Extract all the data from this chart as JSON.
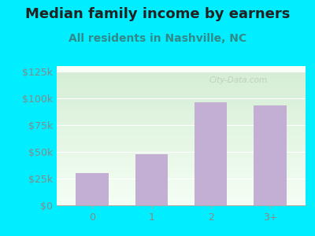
{
  "title": "Median family income by earners",
  "subtitle": "All residents in Nashville, NC",
  "categories": [
    "0",
    "1",
    "2",
    "3+"
  ],
  "values": [
    30000,
    48000,
    96000,
    93000
  ],
  "bar_color": "#c4afd4",
  "background_outer": "#00eeff",
  "title_color": "#222222",
  "subtitle_color": "#338888",
  "tick_label_color": "#888888",
  "ytick_labels": [
    "$0",
    "$25k",
    "$50k",
    "$75k",
    "$100k",
    "$125k"
  ],
  "ytick_values": [
    0,
    25000,
    50000,
    75000,
    100000,
    125000
  ],
  "ylim": [
    0,
    130000
  ],
  "watermark": "City-Data.com",
  "title_fontsize": 13,
  "subtitle_fontsize": 10,
  "tick_fontsize": 9,
  "grad_top_color": "#d4edd4",
  "grad_bottom_color": "#f5fff5",
  "white_stripe_color": "#f0f8f0"
}
